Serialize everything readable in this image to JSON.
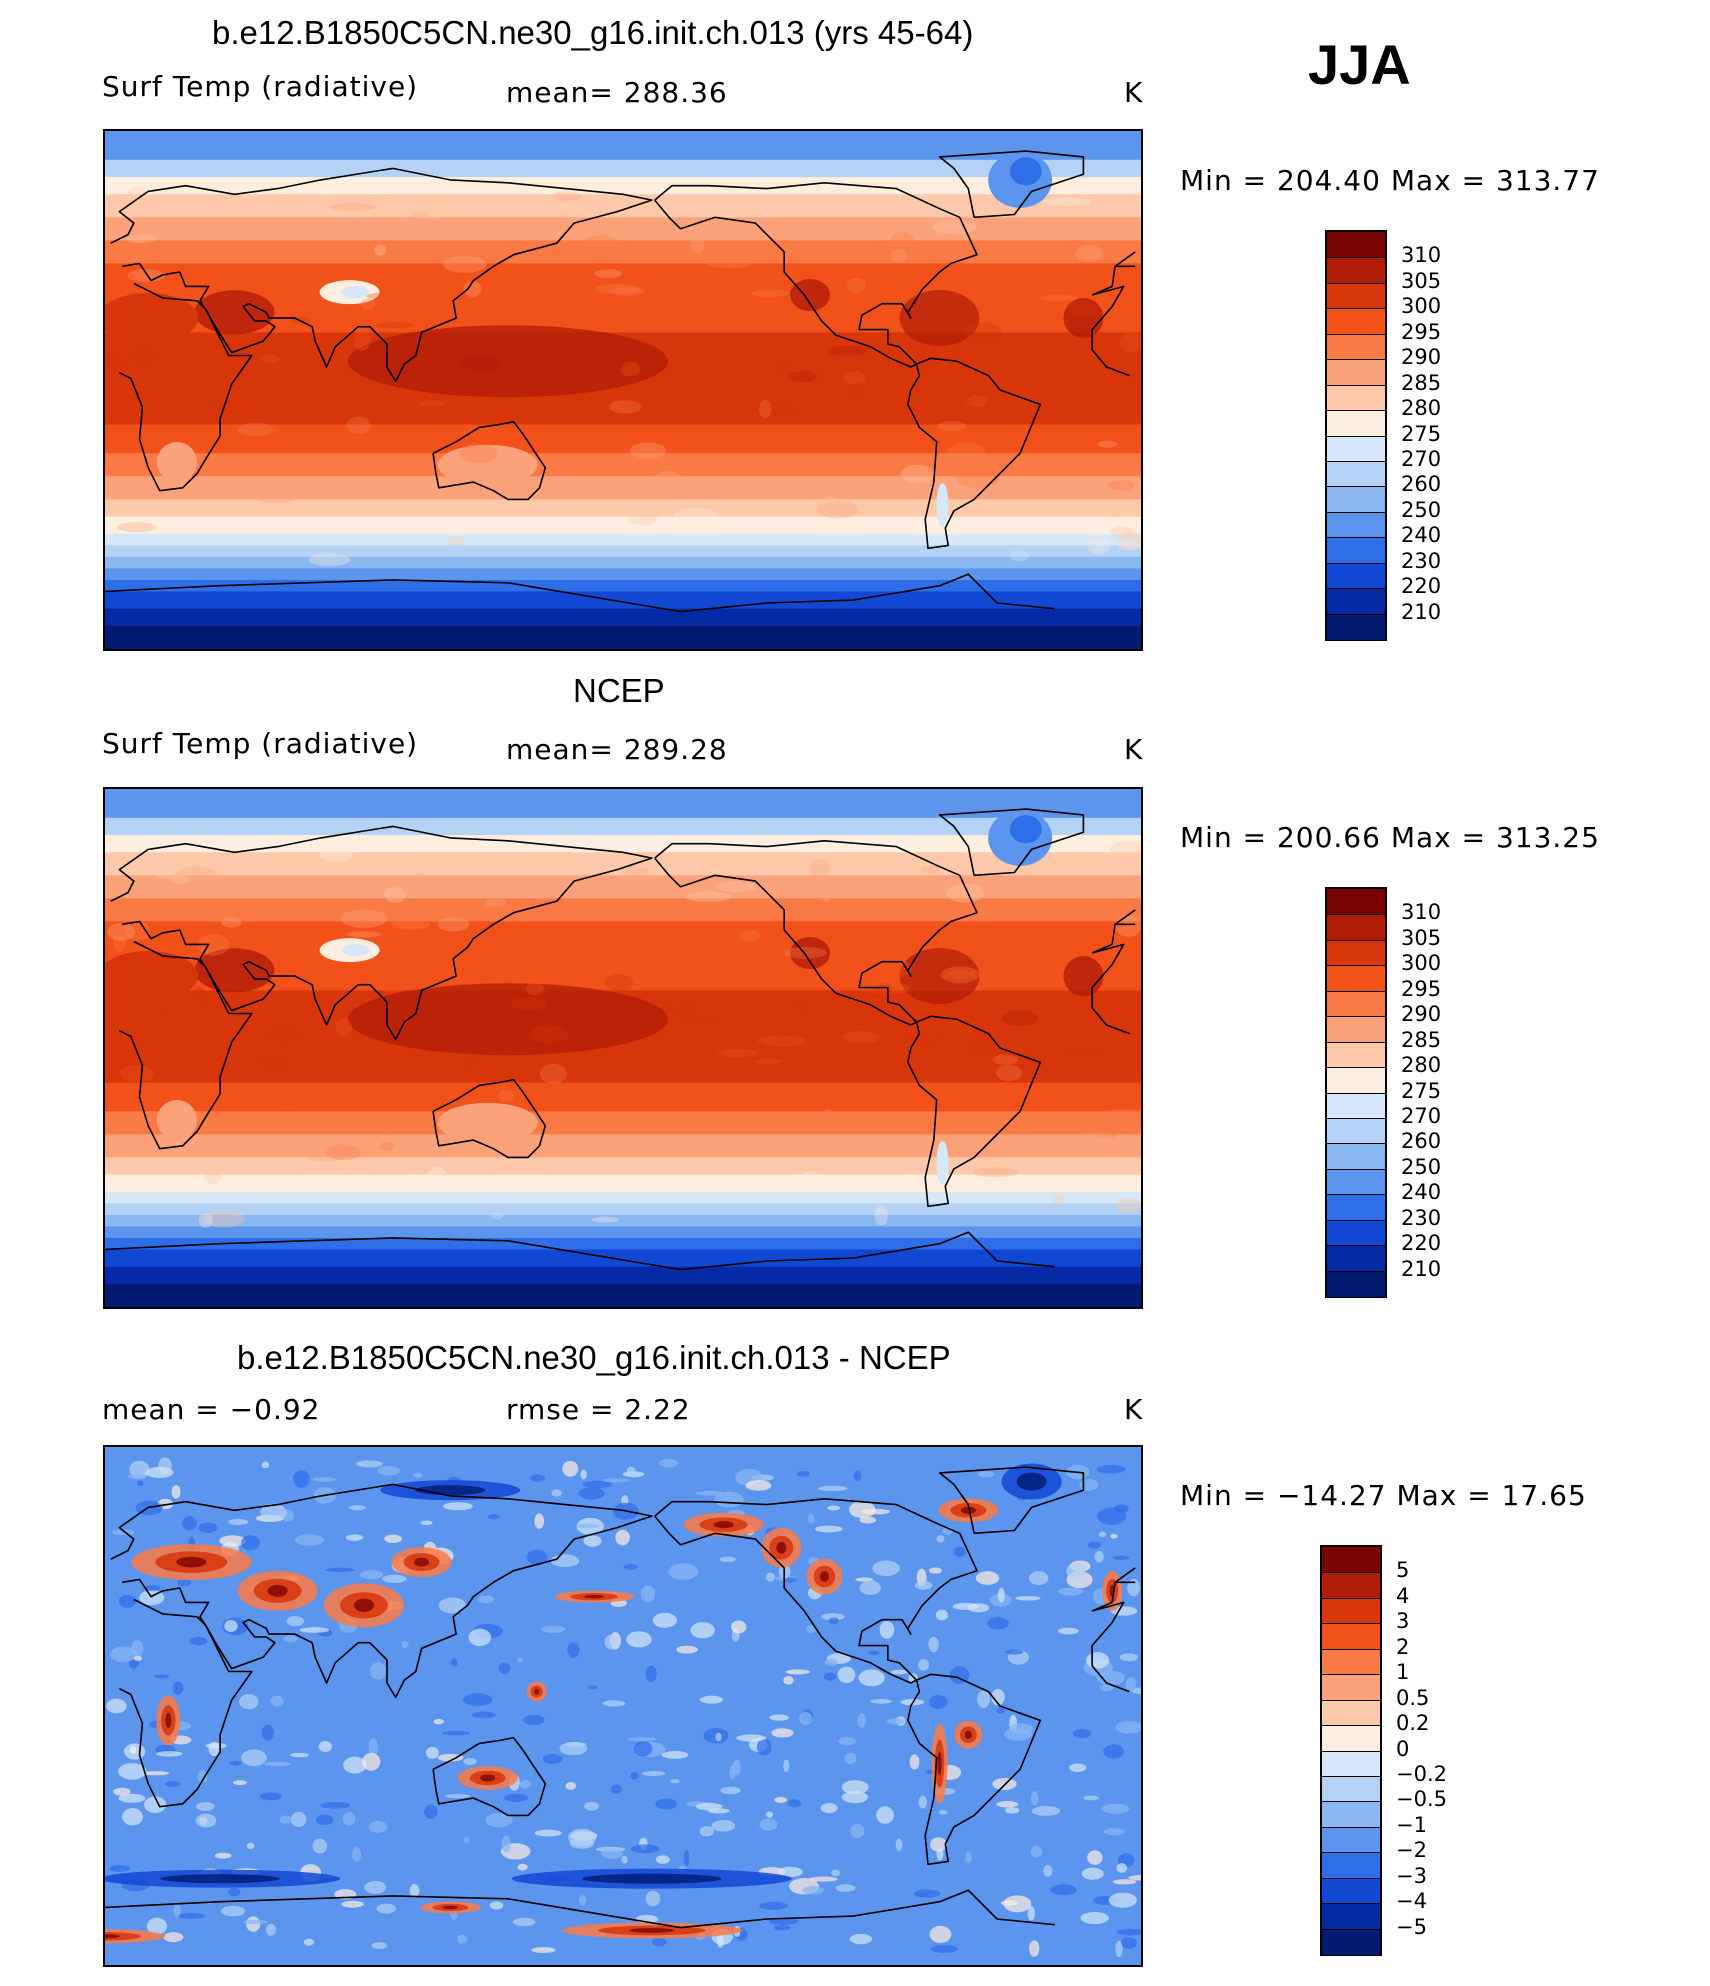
{
  "season": "JJA",
  "units": "K",
  "panels": [
    {
      "id": "model",
      "title": "b.e12.B1850C5CN.ne30_g16.init.ch.013 (yrs 45-64)",
      "left_label": "Surf Temp (radiative)",
      "center_label": "mean=  288.36",
      "units": "K",
      "minmax": "Min  =  204.40  Max  =  313.77"
    },
    {
      "id": "obs",
      "title": "NCEP",
      "left_label": "Surf Temp (radiative)",
      "center_label": "mean=  289.28",
      "units": "K",
      "minmax": "Min  =  200.66  Max  =  313.25"
    },
    {
      "id": "diff",
      "title": "b.e12.B1850C5CN.ne30_g16.init.ch.013 - NCEP",
      "left_label": "mean =    −0.92",
      "center_label": "rmse =     2.22",
      "units": "K",
      "minmax": "Min  =  −14.27  Max  =    17.65"
    }
  ],
  "chart_data": [
    {
      "type": "heatmap",
      "title": "b.e12.B1850C5CN.ne30_g16.init.ch.013 (yrs 45-64)",
      "variable": "Surf Temp (radiative)",
      "units": "K",
      "season": "JJA",
      "mean": 288.36,
      "min": 204.4,
      "max": 313.77,
      "colorbar_levels": [
        "310",
        "305",
        "300",
        "295",
        "290",
        "285",
        "280",
        "275",
        "270",
        "260",
        "250",
        "240",
        "230",
        "220",
        "210"
      ],
      "colors": [
        "#7a0403",
        "#b11c08",
        "#d8350a",
        "#f2521a",
        "#fa7a45",
        "#fca27a",
        "#fdc9aa",
        "#fdeedf",
        "#d5e7f8",
        "#b3d2f5",
        "#8ab6f2",
        "#5c95ee",
        "#2f6ee9",
        "#1048d4",
        "#0629a6",
        "#021a72"
      ]
    },
    {
      "type": "heatmap",
      "title": "NCEP",
      "variable": "Surf Temp (radiative)",
      "units": "K",
      "season": "JJA",
      "mean": 289.28,
      "min": 200.66,
      "max": 313.25,
      "colorbar_levels": [
        "310",
        "305",
        "300",
        "295",
        "290",
        "285",
        "280",
        "275",
        "270",
        "260",
        "250",
        "240",
        "230",
        "220",
        "210"
      ],
      "colors": [
        "#7a0403",
        "#b11c08",
        "#d8350a",
        "#f2521a",
        "#fa7a45",
        "#fca27a",
        "#fdc9aa",
        "#fdeedf",
        "#d5e7f8",
        "#b3d2f5",
        "#8ab6f2",
        "#5c95ee",
        "#2f6ee9",
        "#1048d4",
        "#0629a6",
        "#021a72"
      ]
    },
    {
      "type": "heatmap",
      "title": "b.e12.B1850C5CN.ne30_g16.init.ch.013 - NCEP",
      "units": "K",
      "season": "JJA",
      "mean": -0.92,
      "rmse": 2.22,
      "min": -14.27,
      "max": 17.65,
      "colorbar_levels": [
        "5",
        "4",
        "3",
        "2",
        "1",
        "0.5",
        "0.2",
        "0",
        "−0.2",
        "−0.5",
        "−1",
        "−2",
        "−3",
        "−4",
        "−5"
      ],
      "colors": [
        "#7a0403",
        "#b11c08",
        "#d8350a",
        "#f2521a",
        "#fa7a45",
        "#fca27a",
        "#fdc9aa",
        "#fdeedf",
        "#d5e7f8",
        "#b3d2f5",
        "#8ab6f2",
        "#5c95ee",
        "#2f6ee9",
        "#1048d4",
        "#0629a6",
        "#021a72"
      ]
    }
  ]
}
